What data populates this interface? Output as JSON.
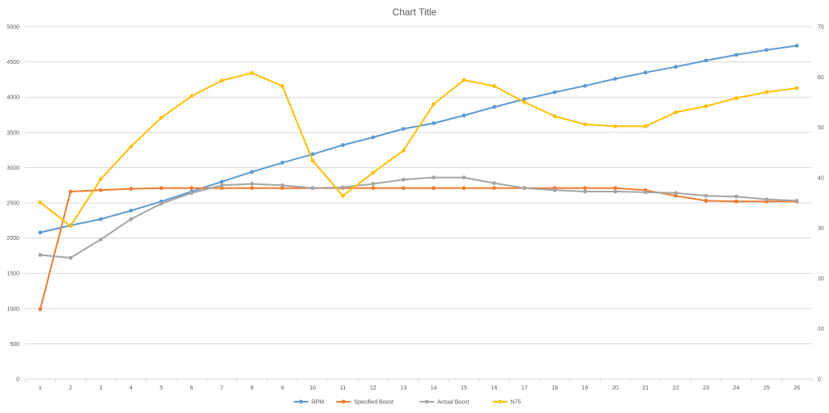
{
  "chart_data": {
    "type": "line",
    "title": "Chart Title",
    "x": [
      1,
      2,
      3,
      4,
      5,
      6,
      7,
      8,
      9,
      10,
      11,
      12,
      13,
      14,
      15,
      16,
      17,
      18,
      19,
      20,
      21,
      22,
      23,
      24,
      25,
      26
    ],
    "y_left_ticks": [
      0,
      500,
      1000,
      1500,
      2000,
      2500,
      3000,
      3500,
      4000,
      4500,
      5000
    ],
    "y_right_ticks": [
      0,
      10,
      20,
      30,
      40,
      50,
      60,
      70
    ],
    "ylim_left": [
      0,
      5000
    ],
    "ylim_right": [
      0,
      70
    ],
    "grid": true,
    "legend_position": "bottom",
    "series": [
      {
        "name": "RPM",
        "color": "#5b9bd5",
        "axis": "left",
        "values": [
          2080,
          2180,
          2270,
          2390,
          2520,
          2660,
          2800,
          2940,
          3070,
          3190,
          3320,
          3430,
          3550,
          3630,
          3740,
          3860,
          3970,
          4070,
          4160,
          4260,
          4350,
          4430,
          4520,
          4600,
          4670,
          4730
        ]
      },
      {
        "name": "Specified Boost",
        "color": "#ed7d31",
        "axis": "left",
        "values": [
          990,
          2660,
          2680,
          2700,
          2710,
          2710,
          2710,
          2710,
          2710,
          2710,
          2710,
          2710,
          2710,
          2710,
          2710,
          2710,
          2710,
          2710,
          2710,
          2710,
          2680,
          2600,
          2530,
          2520,
          2520,
          2520
        ]
      },
      {
        "name": "Actual Boost",
        "color": "#a5a5a5",
        "axis": "left",
        "values": [
          1760,
          1720,
          1980,
          2270,
          2490,
          2640,
          2750,
          2770,
          2750,
          2710,
          2720,
          2770,
          2830,
          2860,
          2860,
          2780,
          2710,
          2680,
          2660,
          2660,
          2650,
          2640,
          2600,
          2590,
          2550,
          2530
        ]
      },
      {
        "name": "N75",
        "color": "#ffc000",
        "axis": "right",
        "values": [
          35.1,
          30.4,
          39.7,
          46.2,
          51.9,
          56.2,
          59.3,
          60.8,
          58.2,
          43.4,
          36.4,
          41.0,
          45.4,
          54.6,
          59.4,
          58.2,
          55.0,
          52.2,
          50.6,
          50.2,
          50.2,
          53.0,
          54.2,
          55.8,
          57.0,
          57.8
        ]
      }
    ]
  }
}
